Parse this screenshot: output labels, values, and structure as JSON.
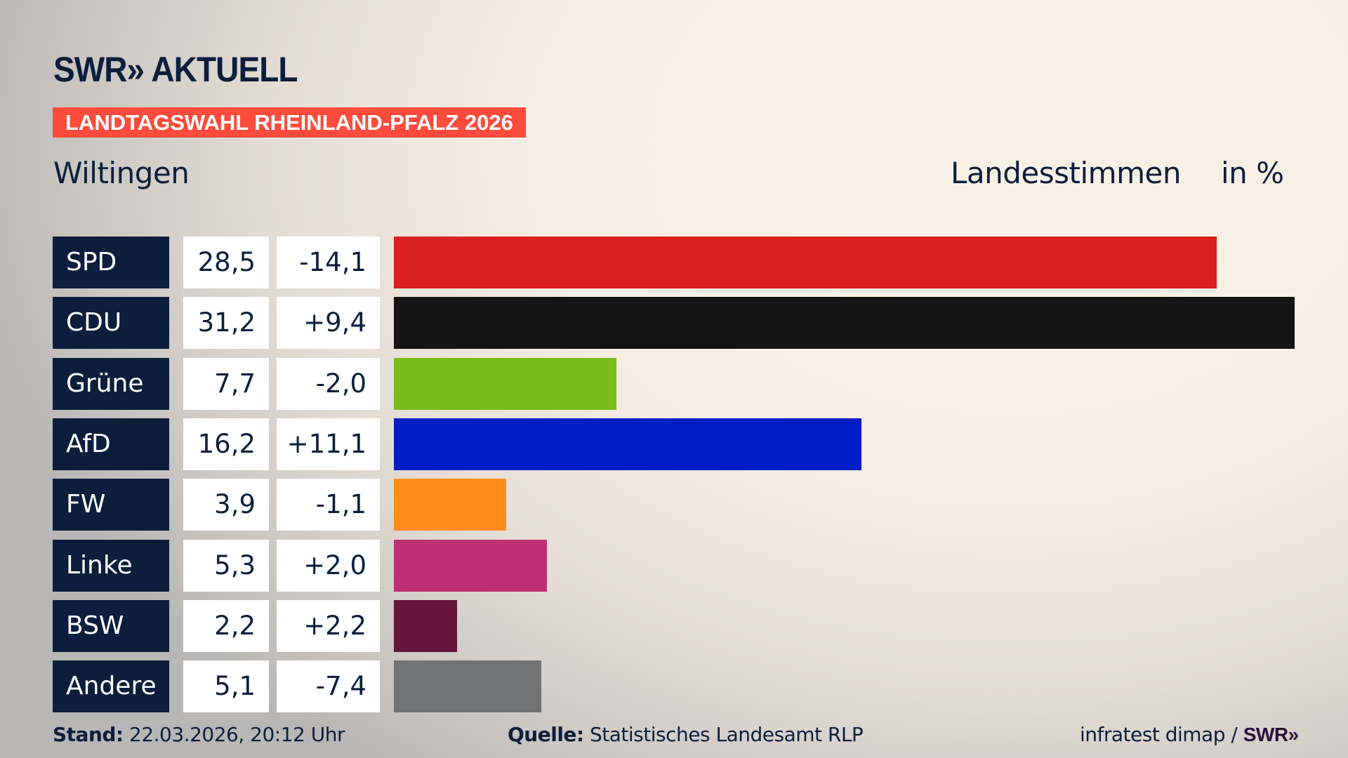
{
  "brand": {
    "logo_text": "SWR» AKTUELL"
  },
  "banner": "LANDTAGSWAHL RHEINLAND-PFALZ 2026",
  "place": "Wiltingen",
  "header": {
    "vote_type": "Landesstimmen",
    "unit": "in %"
  },
  "chart_data": {
    "type": "bar",
    "orientation": "horizontal",
    "categories": [
      "SPD",
      "CDU",
      "Grüne",
      "AfD",
      "FW",
      "Linke",
      "BSW",
      "Andere"
    ],
    "values": [
      28.5,
      31.2,
      7.7,
      16.2,
      3.9,
      5.3,
      2.2,
      5.1
    ],
    "value_labels": [
      "28,5",
      "31,2",
      "7,7",
      "16,2",
      "3,9",
      "5,3",
      "2,2",
      "5,1"
    ],
    "changes": [
      "-14,1",
      "+9,4",
      "-2,0",
      "+11,1",
      "-1,1",
      "+2,0",
      "+2,2",
      "-7,4"
    ],
    "colors": [
      "#d91f1f",
      "#151515",
      "#78bc1c",
      "#001ec8",
      "#ff8c19",
      "#be3075",
      "#64163c",
      "#717274"
    ],
    "xlim": [
      0,
      31.2
    ],
    "grid": false
  },
  "footer": {
    "stand_label": "Stand:",
    "stand_value": "22.03.2026, 20:12 Uhr",
    "source_label": "Quelle:",
    "source_value": "Statistisches Landesamt RLP",
    "credit": "infratest dimap /",
    "credit_brand": "SWR»"
  }
}
